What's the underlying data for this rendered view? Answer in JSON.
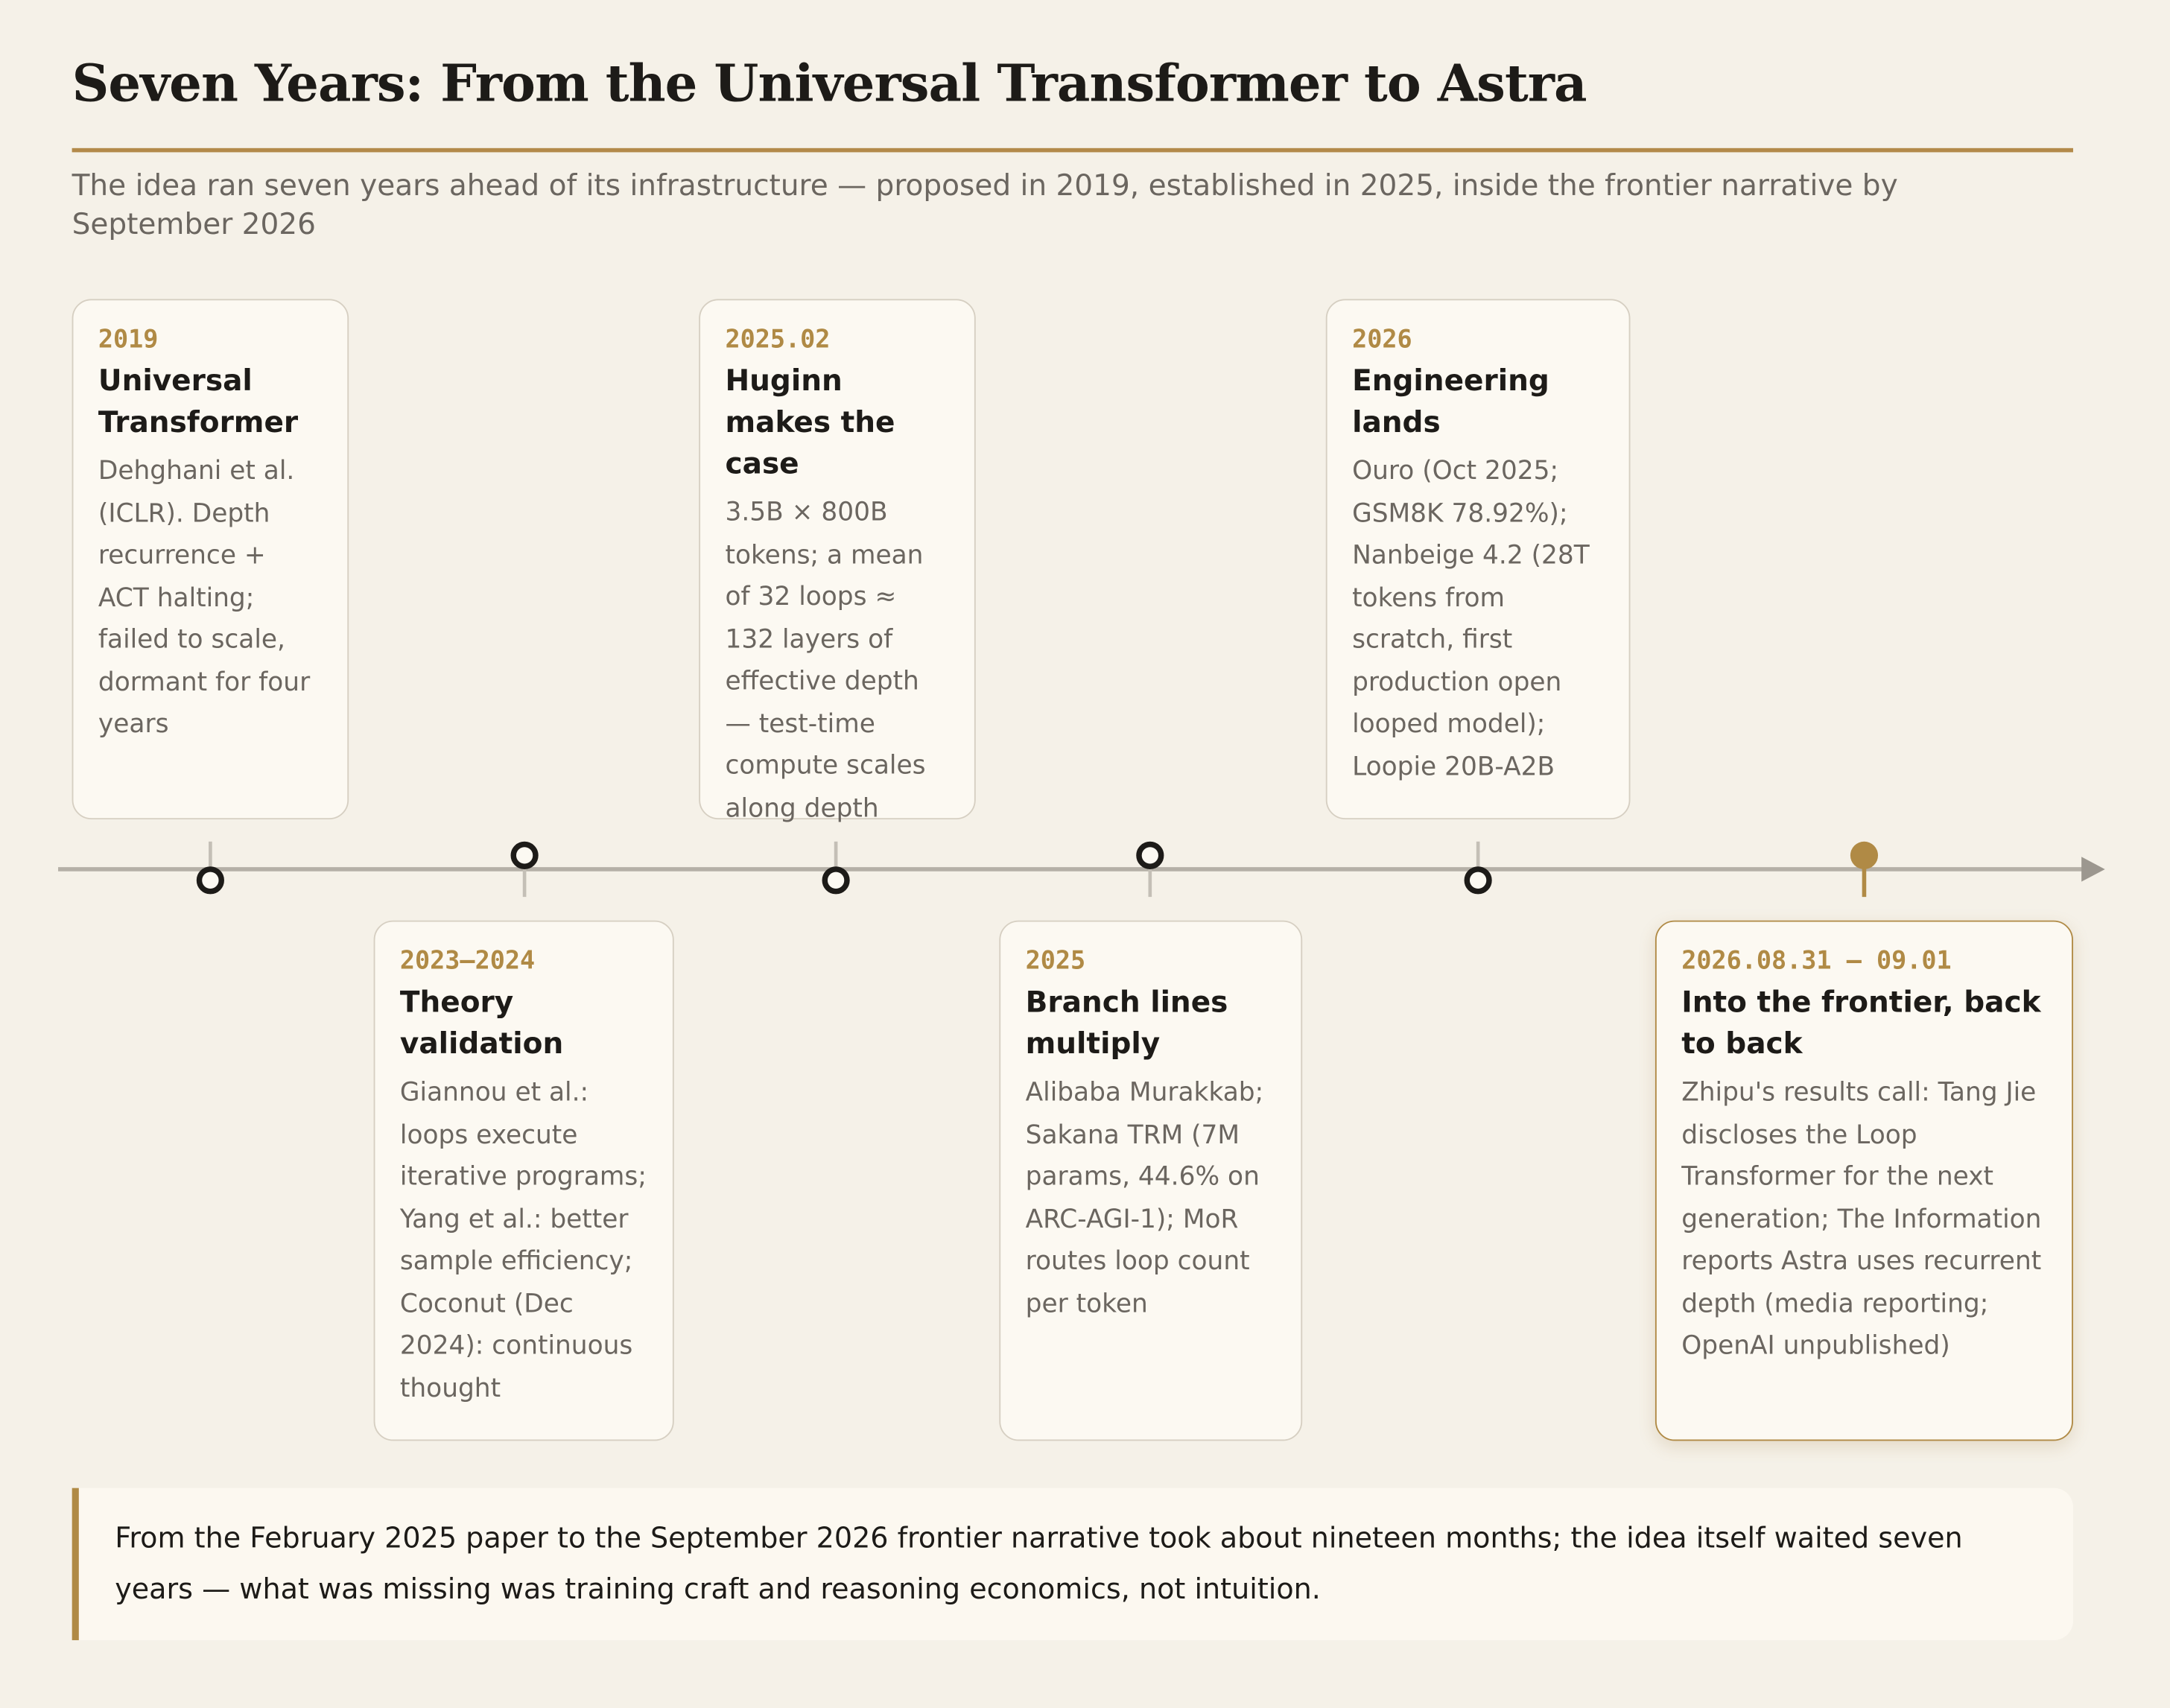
{
  "header": {
    "title": "Seven Years: From the Universal Transformer to Astra",
    "subtitle": "The idea ran seven years ahead of its infrastructure — proposed in 2019, established in 2025, inside the frontier narrative by September 2026"
  },
  "events": [
    {
      "date": "2019",
      "title": "Universal Transformer",
      "body": "Dehghani et al. (ICLR). Depth recurrence + ACT halting; failed to scale, dormant for four years"
    },
    {
      "date": "2023–2024",
      "title": "Theory validation",
      "body": "Giannou et al.: loops execute iterative programs; Yang et al.: better sample efficiency; Coconut (Dec 2024): continuous thought"
    },
    {
      "date": "2025.02",
      "title": "Huginn makes the case",
      "body": "3.5B × 800B tokens; a mean of 32 loops ≈ 132 layers of effective depth — test-time compute scales along depth"
    },
    {
      "date": "2025",
      "title": "Branch lines multiply",
      "body": "Alibaba Murakkab; Sakana TRM (7M params, 44.6% on ARC-AGI-1); MoR routes loop count per token"
    },
    {
      "date": "2026",
      "title": "Engineering lands",
      "body": "Ouro (Oct 2025; GSM8K 78.92%); Nanbeige 4.2 (28T tokens from scratch, first production open looped model); Loopie 20B-A2B"
    },
    {
      "date": "2026.08.31 – 09.01",
      "title": "Into the frontier, back to back",
      "body": "Zhipu's results call: Tang Jie discloses the Loop Transformer for the next generation; The Information reports Astra uses recurrent depth (media reporting; OpenAI unpublished)"
    }
  ],
  "footnote": "From the February 2025 paper to the September 2026 frontier narrative took about nineteen months; the idea itself waited seven years — what was missing was training craft and reasoning economics, not intuition."
}
